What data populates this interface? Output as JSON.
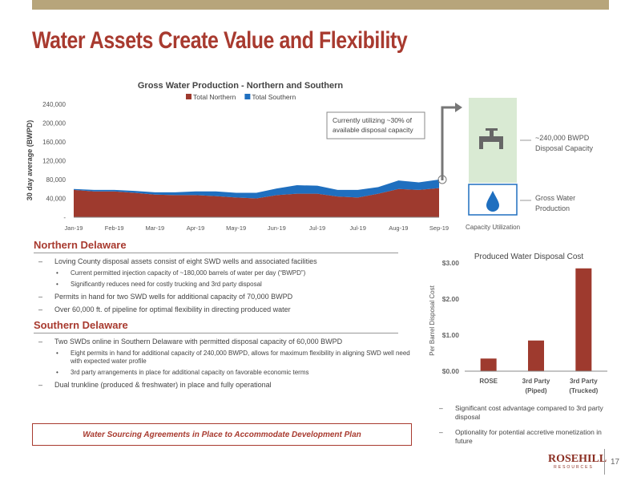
{
  "title": "Water Assets Create Value and Flexibility",
  "chart_data": [
    {
      "type": "area",
      "title": "Gross Water Production - Northern and Southern",
      "y_label": "30 day average (BWPD)",
      "categories": [
        "Jan-19",
        null,
        "Feb-19",
        null,
        "Mar-19",
        null,
        "Apr-19",
        null,
        "May-19",
        null,
        "Jun-19",
        null,
        "Jul-19",
        null,
        "Jul-19",
        null,
        "Aug-19",
        null,
        "Sep-19"
      ],
      "series": [
        {
          "name": "Total Northern",
          "color": "#9e3a2e",
          "values": [
            58000,
            55000,
            55000,
            52000,
            48000,
            47000,
            47000,
            45000,
            42000,
            40000,
            47000,
            50000,
            50000,
            44000,
            42000,
            50000,
            60000,
            58000,
            62000
          ]
        },
        {
          "name": "Total Southern",
          "color": "#1f6fbf",
          "values": [
            2000,
            3000,
            3000,
            4000,
            5000,
            6000,
            8000,
            10000,
            10000,
            12000,
            14000,
            18000,
            17000,
            14000,
            16000,
            14000,
            18000,
            16000,
            18000
          ]
        }
      ],
      "stacked": true,
      "ylim": [
        0,
        240000
      ],
      "yticks": [
        {
          "value": 0,
          "label": "-"
        },
        {
          "value": 40000,
          "label": "40,000"
        },
        {
          "value": 80000,
          "label": "80,000"
        },
        {
          "value": 120000,
          "label": "120,000"
        },
        {
          "value": 160000,
          "label": "160,000"
        },
        {
          "value": 200000,
          "label": "200,000"
        },
        {
          "value": 240000,
          "label": "240,000"
        }
      ],
      "grid": false,
      "legend": "top",
      "annotation": [
        "Currently utilizing ~30% of",
        "available disposal capacity"
      ]
    },
    {
      "type": "bar",
      "title": "Produced Water Disposal Cost",
      "y_label": "Per Barrel Disposal Cost",
      "categories": [
        [
          "ROSE"
        ],
        [
          "3rd Party",
          "(Piped)"
        ],
        [
          "3rd Party",
          "(Trucked)"
        ]
      ],
      "values": [
        0.35,
        0.85,
        2.85
      ],
      "color": "#9e3a2e",
      "ylim": [
        0,
        3
      ],
      "yticks": [
        {
          "value": 0,
          "label": "$0.00"
        },
        {
          "value": 1,
          "label": "$1.00"
        },
        {
          "value": 2,
          "label": "$2.00"
        },
        {
          "value": 3,
          "label": "$3.00"
        }
      ],
      "grid": false
    }
  ],
  "capacity": {
    "label": "Capacity Utilization",
    "disposal": [
      "~240,000 BWPD",
      "Disposal Capacity"
    ],
    "production": [
      "Gross Water",
      "Production"
    ]
  },
  "sections": [
    {
      "heading": "Northern Delaware",
      "items": [
        {
          "text": "Loving County disposal assets consist of eight SWD wells and associated facilities",
          "sub": [
            "Current permitted injection capacity of ~180,000 barrels of water per day (“BWPD”)",
            "Significantly reduces need for costly trucking and 3rd party disposal"
          ]
        },
        {
          "text": "Permits in hand for two SWD wells for additional capacity of 70,000 BWPD",
          "sub": []
        },
        {
          "text": "Over 60,000 ft. of pipeline for optimal flexibility in directing produced water",
          "sub": []
        }
      ]
    },
    {
      "heading": "Southern Delaware",
      "items": [
        {
          "text": "Two SWDs online in Southern Delaware with permitted disposal capacity of 60,000 BWPD",
          "sub": [
            "Eight permits in hand for additional capacity of 240,000 BWPD, allows for maximum flexibility in aligning SWD well need with expected water profile",
            "3rd party arrangements in place for additional capacity on favorable economic terms"
          ]
        },
        {
          "text": "Dual trunkline (produced & freshwater) in place and fully operational",
          "sub": []
        }
      ]
    }
  ],
  "cost_notes": [
    "Significant cost advantage compared to 3rd party disposal",
    "Optionality for potential accretive monetization in future"
  ],
  "callout": "Water Sourcing Agreements in Place to Accommodate Development Plan",
  "logo": {
    "name": "ROSEHILL",
    "sub": "RESOURCES"
  },
  "page": 17
}
